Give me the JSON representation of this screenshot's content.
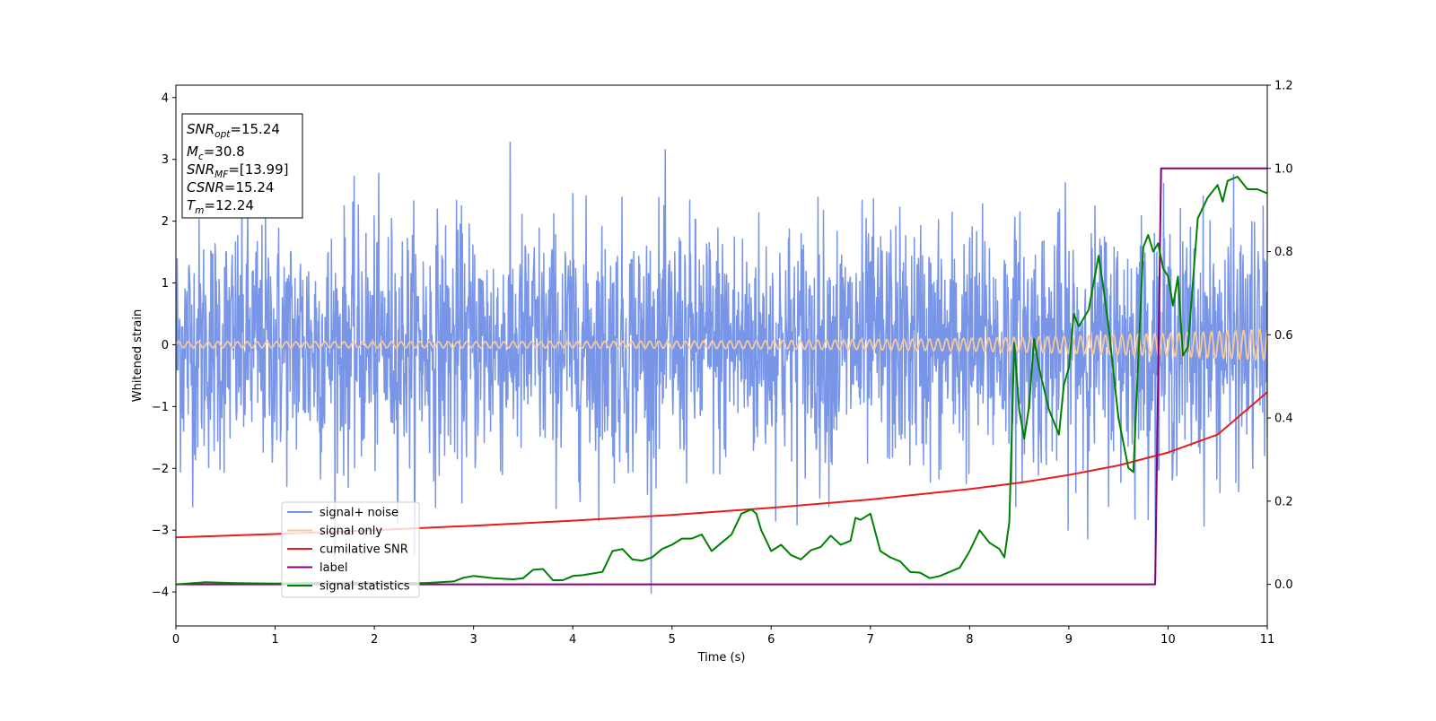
{
  "chart_data": {
    "type": "line",
    "xlabel": "Time (s)",
    "ylabel": "Whitened strain",
    "xlim": [
      0,
      11
    ],
    "ylim_left": [
      -4.55,
      4.2
    ],
    "ylim_right": [
      -0.1,
      1.2
    ],
    "x_ticks": [
      0,
      1,
      2,
      3,
      4,
      5,
      6,
      7,
      8,
      9,
      10,
      11
    ],
    "y_ticks_left": [
      -4,
      -3,
      -2,
      -1,
      0,
      1,
      2,
      3,
      4
    ],
    "y_ticks_right": [
      0.0,
      0.2,
      0.4,
      0.6,
      0.8,
      1.0,
      1.2
    ],
    "y_tick_labels_left": [
      "−4",
      "−3",
      "−2",
      "−1",
      "0",
      "1",
      "2",
      "3",
      "4"
    ],
    "y_tick_labels_right": [
      "0.0",
      "0.2",
      "0.4",
      "0.6",
      "0.8",
      "1.0",
      "1.2"
    ],
    "grid": false,
    "legend_position": "lower-left",
    "legend": [
      "signal+ noise",
      "signal only",
      "cumilative SNR",
      "label",
      "signal statistics"
    ],
    "annotation": {
      "lines": [
        {
          "base": "SNR",
          "sub": "opt",
          "rest": "=15.24"
        },
        {
          "base": "M",
          "sub": "c",
          "rest": "=30.8"
        },
        {
          "base": "SNR",
          "sub": "MF",
          "rest": "=[13.99]"
        },
        {
          "base": "CSNR",
          "sub": "",
          "rest": "=15.24"
        },
        {
          "base": "T",
          "sub": "m",
          "rest": "=12.24"
        }
      ]
    },
    "series": [
      {
        "name": "signal+ noise",
        "axis": "left",
        "color": "#7895E8",
        "kind": "noise",
        "sigma": 1.0,
        "samples": 2400
      },
      {
        "name": "signal only",
        "axis": "left",
        "color": "#F5C89A",
        "kind": "chirp",
        "amplitude_start": 0.05,
        "amplitude_end": 0.25,
        "cycles": 110
      },
      {
        "name": "cumilative SNR",
        "axis": "right",
        "color": "#E81D1D",
        "x": [
          0,
          1,
          2,
          3,
          4,
          5,
          6,
          7,
          8,
          8.5,
          9,
          9.5,
          10,
          10.5,
          11
        ],
        "y": [
          0.113,
          0.121,
          0.13,
          0.141,
          0.153,
          0.167,
          0.184,
          0.204,
          0.229,
          0.244,
          0.263,
          0.286,
          0.317,
          0.36,
          0.462
        ]
      },
      {
        "name": "label",
        "axis": "right",
        "color": "#800080",
        "x": [
          0,
          9.87,
          9.93,
          11
        ],
        "y": [
          0,
          0,
          1,
          1
        ]
      },
      {
        "name": "signal statistics",
        "axis": "right",
        "color": "#008000",
        "x": [
          0,
          0.3,
          0.6,
          1.0,
          1.5,
          2.0,
          2.5,
          2.8,
          2.9,
          3.0,
          3.2,
          3.4,
          3.5,
          3.6,
          3.7,
          3.8,
          3.9,
          4.0,
          4.1,
          4.3,
          4.4,
          4.5,
          4.6,
          4.7,
          4.8,
          4.9,
          5.0,
          5.1,
          5.2,
          5.3,
          5.4,
          5.5,
          5.6,
          5.7,
          5.8,
          5.85,
          5.9,
          6.0,
          6.1,
          6.2,
          6.3,
          6.4,
          6.5,
          6.6,
          6.7,
          6.8,
          6.85,
          6.9,
          7.0,
          7.1,
          7.2,
          7.3,
          7.4,
          7.5,
          7.6,
          7.7,
          7.8,
          7.9,
          8.0,
          8.1,
          8.2,
          8.3,
          8.35,
          8.4,
          8.45,
          8.5,
          8.55,
          8.6,
          8.65,
          8.7,
          8.8,
          8.9,
          8.95,
          9.0,
          9.05,
          9.1,
          9.2,
          9.3,
          9.35,
          9.4,
          9.5,
          9.6,
          9.65,
          9.75,
          9.8,
          9.85,
          9.9,
          9.95,
          10.0,
          10.05,
          10.1,
          10.15,
          10.2,
          10.3,
          10.4,
          10.5,
          10.55,
          10.6,
          10.7,
          10.8,
          10.9,
          11.0
        ],
        "y": [
          0.0,
          0.005,
          0.003,
          0.002,
          0.004,
          0.004,
          0.003,
          0.007,
          0.016,
          0.02,
          0.015,
          0.012,
          0.015,
          0.035,
          0.037,
          0.01,
          0.01,
          0.02,
          0.022,
          0.03,
          0.08,
          0.085,
          0.06,
          0.057,
          0.065,
          0.085,
          0.095,
          0.11,
          0.11,
          0.12,
          0.08,
          0.1,
          0.12,
          0.17,
          0.18,
          0.17,
          0.13,
          0.08,
          0.095,
          0.07,
          0.06,
          0.082,
          0.09,
          0.117,
          0.095,
          0.105,
          0.16,
          0.155,
          0.17,
          0.08,
          0.065,
          0.055,
          0.03,
          0.028,
          0.015,
          0.02,
          0.03,
          0.04,
          0.08,
          0.13,
          0.1,
          0.085,
          0.065,
          0.15,
          0.58,
          0.42,
          0.35,
          0.43,
          0.59,
          0.52,
          0.42,
          0.36,
          0.48,
          0.52,
          0.65,
          0.62,
          0.66,
          0.79,
          0.71,
          0.62,
          0.4,
          0.28,
          0.27,
          0.81,
          0.84,
          0.8,
          0.82,
          0.76,
          0.74,
          0.67,
          0.74,
          0.55,
          0.57,
          0.88,
          0.93,
          0.96,
          0.92,
          0.97,
          0.98,
          0.95,
          0.95,
          0.94
        ]
      }
    ]
  }
}
